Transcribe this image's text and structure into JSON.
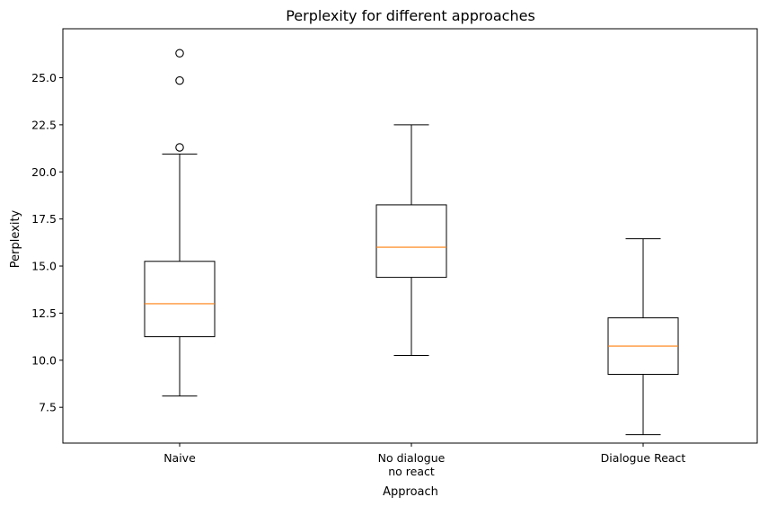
{
  "chart_data": {
    "type": "box",
    "title": "Perplexity for different approaches",
    "xlabel": "Approach",
    "ylabel": "Perplexity",
    "ylim": [
      5.6,
      27.6
    ],
    "yticks": [
      "7.5",
      "10.0",
      "12.5",
      "15.0",
      "17.5",
      "20.0",
      "22.5",
      "25.0"
    ],
    "grid": false,
    "categories": [
      {
        "lines": [
          "Naive"
        ]
      },
      {
        "lines": [
          "No dialogue",
          "no react"
        ]
      },
      {
        "lines": [
          "Dialogue React"
        ]
      }
    ],
    "boxes": [
      {
        "whisker_low": 8.1,
        "q1": 11.25,
        "median": 13.0,
        "q3": 15.25,
        "whisker_high": 20.95,
        "outliers": [
          21.3,
          24.85,
          26.3
        ]
      },
      {
        "whisker_low": 10.25,
        "q1": 14.4,
        "median": 16.0,
        "q3": 18.25,
        "whisker_high": 22.5,
        "outliers": []
      },
      {
        "whisker_low": 6.05,
        "q1": 9.25,
        "median": 10.75,
        "q3": 12.25,
        "whisker_high": 16.45,
        "outliers": []
      }
    ],
    "colors": {
      "box": "#000000",
      "median": "#ff7f0e",
      "outlier": "#000000"
    }
  }
}
